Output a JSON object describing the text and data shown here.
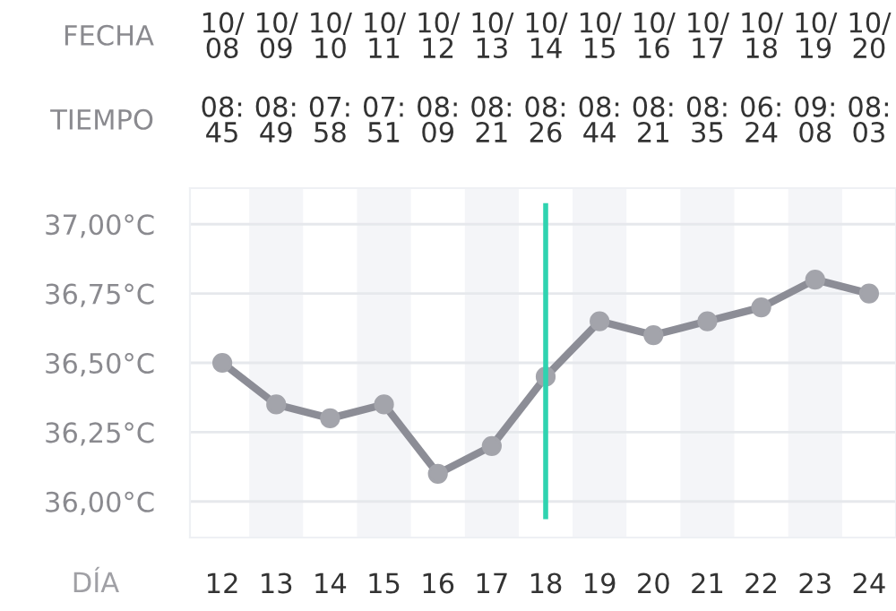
{
  "chart_data": {
    "type": "line",
    "x": [
      12,
      13,
      14,
      15,
      16,
      17,
      18,
      19,
      20,
      21,
      22,
      23,
      24
    ],
    "series": [
      {
        "color": "#8c8d96",
        "values": [
          36.5,
          36.35,
          36.3,
          36.35,
          36.1,
          36.2,
          36.45,
          36.65,
          36.6,
          36.65,
          36.7,
          36.8,
          36.75
        ]
      }
    ],
    "xlabel": "DÍA",
    "xlim": [
      11.4,
      24.5
    ],
    "xticks": [
      12,
      13,
      14,
      15,
      16,
      17,
      18,
      19,
      20,
      21,
      22,
      23,
      24
    ],
    "ylim": [
      35.87,
      37.13
    ],
    "yticks": [
      {
        "value": 36.0,
        "label": "36,00°C"
      },
      {
        "value": 36.25,
        "label": "36,25°C"
      },
      {
        "value": 36.5,
        "label": "36,50°C"
      },
      {
        "value": 36.75,
        "label": "36,75°C"
      },
      {
        "value": 37.0,
        "label": "37,00°C"
      }
    ],
    "annotations": [
      "FECHA",
      "TIEMPO",
      "10/\n08",
      "08:\n45",
      "10/\n09",
      "08:\n49",
      "10/\n10",
      "07:\n58",
      "10/\n11",
      "07:\n51",
      "10/\n12",
      "08:\n09",
      "10/\n13",
      "08:\n21",
      "10/\n14",
      "08:\n26",
      "10/\n15",
      "08:\n44",
      "10/\n16",
      "08:\n21",
      "10/\n17",
      "08:\n35",
      "10/\n18",
      "06:\n24",
      "10/\n19",
      "09:\n08",
      "10/\n20",
      "08:\n03"
    ],
    "ref_lines": [
      {
        "axis": "x",
        "value": 18,
        "color": "#2fd3b0"
      }
    ],
    "bands": [
      {
        "axis": "x",
        "from": 12.5,
        "to": 13.5,
        "color": "#f4f5f8"
      },
      {
        "axis": "x",
        "from": 14.5,
        "to": 15.5,
        "color": "#f4f5f8"
      },
      {
        "axis": "x",
        "from": 16.5,
        "to": 17.5,
        "color": "#f4f5f8"
      },
      {
        "axis": "x",
        "from": 18.5,
        "to": 19.5,
        "color": "#f4f5f8"
      },
      {
        "axis": "x",
        "from": 20.5,
        "to": 21.5,
        "color": "#f4f5f8"
      },
      {
        "axis": "x",
        "from": 22.5,
        "to": 23.5,
        "color": "#f4f5f8"
      }
    ],
    "grid": "y",
    "marker": "circle",
    "line_style": "solid"
  }
}
